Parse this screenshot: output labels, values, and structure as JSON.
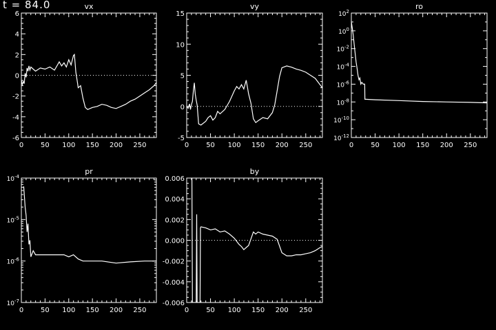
{
  "time_label": "t = 84.0",
  "chart_data": [
    {
      "type": "line",
      "title": "vx",
      "xlim": [
        0,
        285
      ],
      "ylim": [
        -6,
        6
      ],
      "yscale": "linear",
      "xticks": [
        0,
        50,
        100,
        150,
        200,
        250
      ],
      "yticks": [
        -6,
        -4,
        -2,
        0,
        2,
        4,
        6
      ],
      "ytick_labels": [
        "-6",
        "-4",
        "-2",
        "0",
        "2",
        "4",
        "6"
      ],
      "reference_line": 0,
      "series": [
        {
          "x": [
            0,
            2,
            4,
            6,
            8,
            10,
            12,
            14,
            16,
            18,
            20,
            25,
            30,
            40,
            50,
            60,
            70,
            80,
            85,
            90,
            95,
            100,
            105,
            110,
            112,
            115,
            118,
            120,
            125,
            130,
            135,
            140,
            150,
            160,
            170,
            180,
            190,
            200,
            210,
            220,
            230,
            240,
            250,
            260,
            270,
            280,
            285
          ],
          "y": [
            -0.5,
            -0.9,
            -0.6,
            -0.8,
            0.2,
            -0.2,
            0.7,
            0.4,
            0.9,
            0.5,
            0.8,
            0.6,
            0.4,
            0.7,
            0.6,
            0.8,
            0.5,
            1.3,
            0.9,
            1.2,
            0.8,
            1.5,
            1.0,
            1.9,
            2.0,
            0.3,
            -0.6,
            -1.2,
            -1.0,
            -2.2,
            -3.1,
            -3.3,
            -3.1,
            -3.0,
            -2.8,
            -2.9,
            -3.1,
            -3.2,
            -3.0,
            -2.8,
            -2.5,
            -2.3,
            -2.0,
            -1.7,
            -1.4,
            -1.0,
            -0.7
          ]
        }
      ]
    },
    {
      "type": "line",
      "title": "vy",
      "xlim": [
        0,
        285
      ],
      "ylim": [
        -5,
        15
      ],
      "yscale": "linear",
      "xticks": [
        0,
        50,
        100,
        150,
        200,
        250
      ],
      "yticks": [
        -5,
        0,
        5,
        10,
        15
      ],
      "ytick_labels": [
        "-5",
        "0",
        "5",
        "10",
        "15"
      ],
      "reference_line": 0,
      "series": [
        {
          "x": [
            0,
            3,
            6,
            8,
            10,
            12,
            14,
            16,
            18,
            20,
            22,
            25,
            30,
            40,
            45,
            50,
            55,
            60,
            65,
            70,
            80,
            90,
            100,
            105,
            110,
            115,
            120,
            125,
            130,
            135,
            140,
            145,
            150,
            160,
            170,
            180,
            185,
            190,
            195,
            200,
            210,
            220,
            230,
            240,
            250,
            260,
            270,
            280,
            285
          ],
          "y": [
            0,
            -0.3,
            0.4,
            -0.5,
            0.3,
            0.8,
            2.5,
            3.8,
            2.0,
            1.0,
            0.2,
            -2.8,
            -3.0,
            -2.4,
            -1.8,
            -1.5,
            -2.2,
            -1.8,
            -0.8,
            -1.2,
            -0.5,
            0.8,
            2.5,
            3.2,
            2.8,
            3.5,
            2.8,
            4.2,
            2.0,
            0.5,
            -2.0,
            -2.6,
            -2.3,
            -1.8,
            -2.0,
            -1.0,
            0.3,
            2.5,
            4.8,
            6.2,
            6.5,
            6.3,
            6.0,
            5.8,
            5.5,
            5.0,
            4.5,
            3.5,
            3.0
          ]
        }
      ]
    },
    {
      "type": "line",
      "title": "ro",
      "xlim": [
        0,
        285
      ],
      "ylim": [
        -12,
        2
      ],
      "yscale": "log",
      "xticks": [
        0,
        50,
        100,
        150,
        200,
        250
      ],
      "yticks": [
        -12,
        -10,
        -8,
        -6,
        -4,
        -2,
        0,
        2
      ],
      "ytick_labels": [
        "10^-12",
        "10^-10",
        "10^-8",
        "10^-6",
        "10^-4",
        "10^-2",
        "10^0",
        "10^2"
      ],
      "reference_line": null,
      "series": [
        {
          "x": [
            0,
            2,
            4,
            6,
            8,
            10,
            12,
            14,
            16,
            18,
            20,
            22,
            25,
            28,
            28.5,
            30,
            50,
            100,
            150,
            200,
            250,
            285
          ],
          "y": [
            1.0,
            0.3,
            -0.5,
            -1.5,
            -2.5,
            -3.5,
            -4.2,
            -5.0,
            -5.5,
            -5.3,
            -6.0,
            -5.8,
            -6.0,
            -6.0,
            -7.7,
            -7.7,
            -7.75,
            -7.85,
            -7.95,
            -8.0,
            -8.05,
            -8.1
          ]
        }
      ]
    },
    {
      "type": "line",
      "title": "pr",
      "xlim": [
        0,
        285
      ],
      "ylim": [
        -7,
        -4
      ],
      "yscale": "log",
      "xticks": [
        0,
        50,
        100,
        150,
        200,
        250
      ],
      "yticks": [
        -7,
        -6,
        -5,
        -4
      ],
      "ytick_labels": [
        "10^-7",
        "10^-6",
        "10^-5",
        "10^-4"
      ],
      "reference_line": null,
      "series": [
        {
          "x": [
            5,
            8,
            10,
            12,
            14,
            16,
            18,
            20,
            25,
            30,
            50,
            70,
            90,
            100,
            110,
            120,
            130,
            150,
            170,
            200,
            230,
            260,
            285
          ],
          "y": [
            -4.2,
            -4.7,
            -4.9,
            -5.3,
            -5.1,
            -5.6,
            -5.5,
            -5.9,
            -5.75,
            -5.85,
            -5.85,
            -5.85,
            -5.85,
            -5.9,
            -5.85,
            -5.95,
            -6.0,
            -6.0,
            -6.0,
            -6.05,
            -6.02,
            -6.0,
            -6.0
          ]
        }
      ]
    },
    {
      "type": "line",
      "title": "by",
      "xlim": [
        0,
        285
      ],
      "ylim": [
        -0.006,
        0.006
      ],
      "yscale": "linear",
      "xticks": [
        0,
        50,
        100,
        150,
        200,
        250
      ],
      "yticks": [
        -0.006,
        -0.004,
        -0.002,
        0.0,
        0.002,
        0.004,
        0.006
      ],
      "ytick_labels": [
        "-0.006",
        "-0.004",
        "-0.002",
        "0.000",
        "0.002",
        "0.004",
        "0.006"
      ],
      "reference_line": 0,
      "series": [
        {
          "x": [
            10,
            11,
            12,
            13,
            20,
            21,
            22,
            28,
            29,
            30,
            40,
            50,
            60,
            70,
            80,
            90,
            100,
            110,
            115,
            120,
            130,
            140,
            145,
            150,
            160,
            170,
            180,
            190,
            200,
            210,
            220,
            230,
            240,
            250,
            260,
            270,
            280,
            285
          ],
          "y": [
            0.006,
            0.006,
            -0.006,
            -0.006,
            -0.006,
            0.0025,
            -0.006,
            -0.006,
            0.0012,
            0.0013,
            0.0012,
            0.001,
            0.0011,
            0.0008,
            0.0009,
            0.0006,
            0.0002,
            -0.0004,
            -0.0006,
            -0.0009,
            -0.0005,
            0.0008,
            0.0006,
            0.0008,
            0.0006,
            0.0005,
            0.0004,
            0.0001,
            -0.0012,
            -0.0015,
            -0.0015,
            -0.0014,
            -0.0014,
            -0.0013,
            -0.0012,
            -0.001,
            -0.0007,
            -0.0006
          ]
        }
      ]
    }
  ]
}
